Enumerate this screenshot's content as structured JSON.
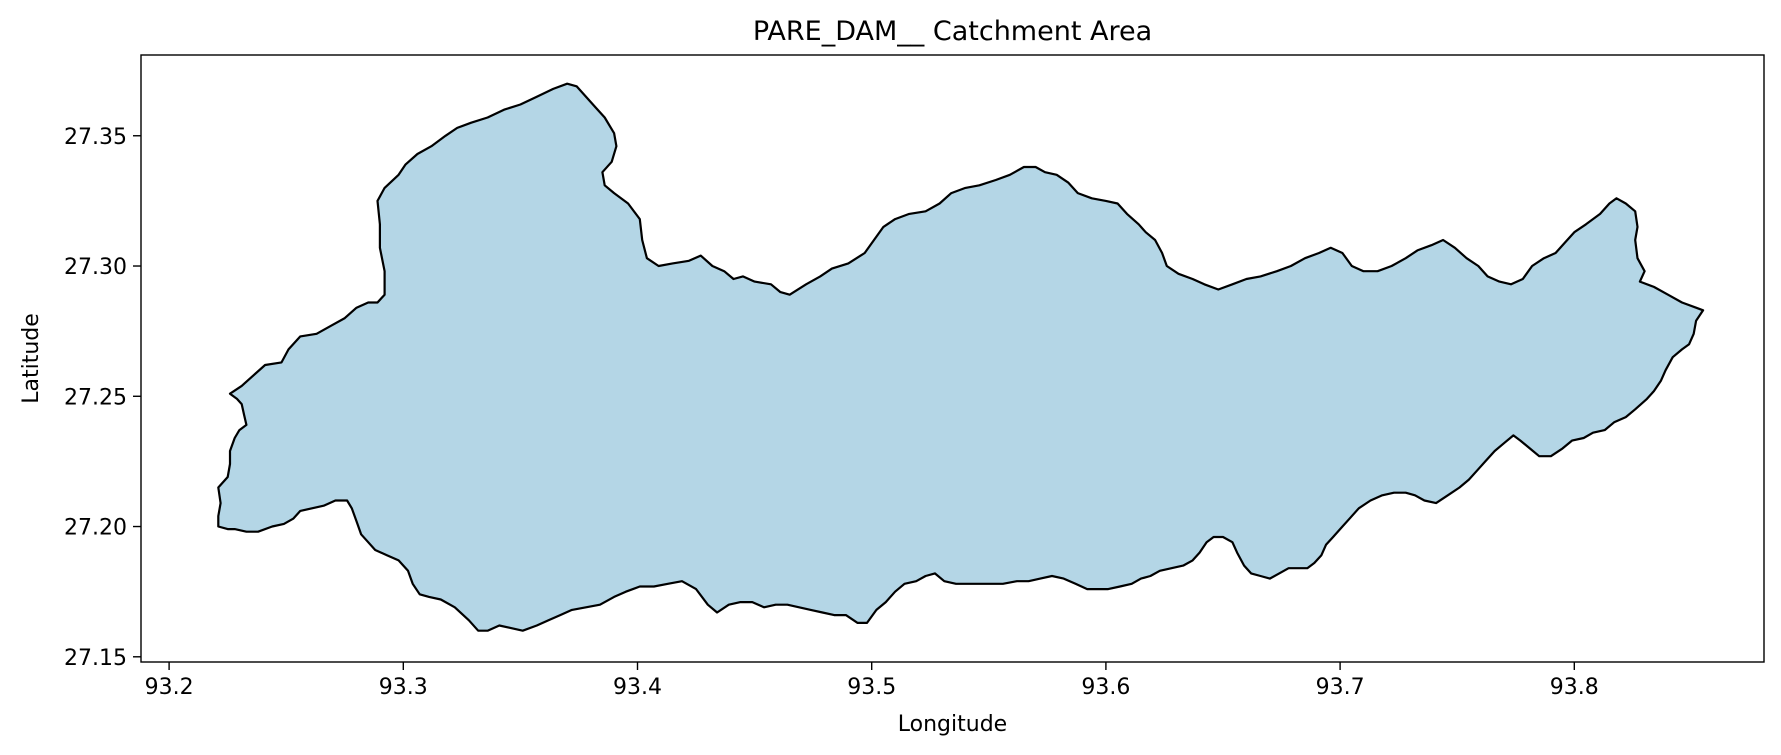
{
  "chart_data": {
    "type": "area",
    "title": "PARE_DAM__ Catchment Area",
    "xlabel": "Longitude",
    "ylabel": "Latitude",
    "xlim": [
      93.188,
      93.881
    ],
    "ylim": [
      27.148,
      27.381
    ],
    "xticks": [
      93.2,
      93.3,
      93.4,
      93.5,
      93.6,
      93.7,
      93.8
    ],
    "xtick_labels": [
      "93.2",
      "93.3",
      "93.4",
      "93.5",
      "93.6",
      "93.7",
      "93.8"
    ],
    "yticks": [
      27.15,
      27.2,
      27.25,
      27.3,
      27.35
    ],
    "ytick_labels": [
      "27.15",
      "27.20",
      "27.25",
      "27.30",
      "27.35"
    ],
    "grid": false,
    "fill_color": "#b4d6e6",
    "edge_color": "#000000",
    "series": [
      {
        "points": [
          [
            93.226,
            27.251
          ],
          [
            93.231,
            27.254
          ],
          [
            93.236,
            27.258
          ],
          [
            93.241,
            27.262
          ],
          [
            93.248,
            27.263
          ],
          [
            93.251,
            27.268
          ],
          [
            93.256,
            27.273
          ],
          [
            93.263,
            27.274
          ],
          [
            93.269,
            27.277
          ],
          [
            93.275,
            27.28
          ],
          [
            93.28,
            27.284
          ],
          [
            93.285,
            27.286
          ],
          [
            93.289,
            27.286
          ],
          [
            93.292,
            27.289
          ],
          [
            93.292,
            27.298
          ],
          [
            93.29,
            27.307
          ],
          [
            93.29,
            27.316
          ],
          [
            93.289,
            27.325
          ],
          [
            93.292,
            27.33
          ],
          [
            93.298,
            27.335
          ],
          [
            93.301,
            27.339
          ],
          [
            93.306,
            27.343
          ],
          [
            93.312,
            27.346
          ],
          [
            93.318,
            27.35
          ],
          [
            93.323,
            27.353
          ],
          [
            93.329,
            27.355
          ],
          [
            93.336,
            27.357
          ],
          [
            93.343,
            27.36
          ],
          [
            93.35,
            27.362
          ],
          [
            93.357,
            27.365
          ],
          [
            93.364,
            27.368
          ],
          [
            93.37,
            27.37
          ],
          [
            93.374,
            27.369
          ],
          [
            93.378,
            27.365
          ],
          [
            93.382,
            27.361
          ],
          [
            93.386,
            27.357
          ],
          [
            93.39,
            27.351
          ],
          [
            93.391,
            27.346
          ],
          [
            93.389,
            27.34
          ],
          [
            93.385,
            27.336
          ],
          [
            93.386,
            27.331
          ],
          [
            93.39,
            27.328
          ],
          [
            93.396,
            27.324
          ],
          [
            93.401,
            27.318
          ],
          [
            93.402,
            27.31
          ],
          [
            93.404,
            27.303
          ],
          [
            93.409,
            27.3
          ],
          [
            93.415,
            27.301
          ],
          [
            93.422,
            27.302
          ],
          [
            93.427,
            27.304
          ],
          [
            93.432,
            27.3
          ],
          [
            93.437,
            27.298
          ],
          [
            93.441,
            27.295
          ],
          [
            93.445,
            27.296
          ],
          [
            93.45,
            27.294
          ],
          [
            93.457,
            27.293
          ],
          [
            93.461,
            27.29
          ],
          [
            93.465,
            27.289
          ],
          [
            93.472,
            27.293
          ],
          [
            93.478,
            27.296
          ],
          [
            93.483,
            27.299
          ],
          [
            93.49,
            27.301
          ],
          [
            93.497,
            27.305
          ],
          [
            93.501,
            27.31
          ],
          [
            93.505,
            27.315
          ],
          [
            93.51,
            27.318
          ],
          [
            93.516,
            27.32
          ],
          [
            93.523,
            27.321
          ],
          [
            93.529,
            27.324
          ],
          [
            93.534,
            27.328
          ],
          [
            93.54,
            27.33
          ],
          [
            93.546,
            27.331
          ],
          [
            93.553,
            27.333
          ],
          [
            93.559,
            27.335
          ],
          [
            93.565,
            27.338
          ],
          [
            93.57,
            27.338
          ],
          [
            93.574,
            27.336
          ],
          [
            93.579,
            27.335
          ],
          [
            93.584,
            27.332
          ],
          [
            93.588,
            27.328
          ],
          [
            93.594,
            27.326
          ],
          [
            93.6,
            27.325
          ],
          [
            93.605,
            27.324
          ],
          [
            93.609,
            27.32
          ],
          [
            93.614,
            27.316
          ],
          [
            93.617,
            27.313
          ],
          [
            93.621,
            27.31
          ],
          [
            93.624,
            27.305
          ],
          [
            93.626,
            27.3
          ],
          [
            93.631,
            27.297
          ],
          [
            93.637,
            27.295
          ],
          [
            93.642,
            27.293
          ],
          [
            93.648,
            27.291
          ],
          [
            93.654,
            27.293
          ],
          [
            93.66,
            27.295
          ],
          [
            93.666,
            27.296
          ],
          [
            93.673,
            27.298
          ],
          [
            93.679,
            27.3
          ],
          [
            93.685,
            27.303
          ],
          [
            93.691,
            27.305
          ],
          [
            93.696,
            27.307
          ],
          [
            93.701,
            27.305
          ],
          [
            93.705,
            27.3
          ],
          [
            93.71,
            27.298
          ],
          [
            93.716,
            27.298
          ],
          [
            93.722,
            27.3
          ],
          [
            93.728,
            27.303
          ],
          [
            93.733,
            27.306
          ],
          [
            93.739,
            27.308
          ],
          [
            93.744,
            27.31
          ],
          [
            93.749,
            27.307
          ],
          [
            93.754,
            27.303
          ],
          [
            93.759,
            27.3
          ],
          [
            93.763,
            27.296
          ],
          [
            93.768,
            27.294
          ],
          [
            93.773,
            27.293
          ],
          [
            93.778,
            27.295
          ],
          [
            93.782,
            27.3
          ],
          [
            93.787,
            27.303
          ],
          [
            93.792,
            27.305
          ],
          [
            93.796,
            27.309
          ],
          [
            93.8,
            27.313
          ],
          [
            93.805,
            27.316
          ],
          [
            93.811,
            27.32
          ],
          [
            93.815,
            27.324
          ],
          [
            93.818,
            27.326
          ],
          [
            93.822,
            27.324
          ],
          [
            93.826,
            27.321
          ],
          [
            93.827,
            27.315
          ],
          [
            93.826,
            27.31
          ],
          [
            93.827,
            27.303
          ],
          [
            93.83,
            27.298
          ],
          [
            93.828,
            27.294
          ],
          [
            93.834,
            27.292
          ],
          [
            93.84,
            27.289
          ],
          [
            93.846,
            27.286
          ],
          [
            93.852,
            27.284
          ],
          [
            93.855,
            27.283
          ],
          [
            93.852,
            27.279
          ],
          [
            93.851,
            27.274
          ],
          [
            93.849,
            27.27
          ],
          [
            93.846,
            27.268
          ],
          [
            93.842,
            27.265
          ],
          [
            93.839,
            27.26
          ],
          [
            93.837,
            27.256
          ],
          [
            93.834,
            27.252
          ],
          [
            93.831,
            27.249
          ],
          [
            93.826,
            27.245
          ],
          [
            93.822,
            27.242
          ],
          [
            93.817,
            27.24
          ],
          [
            93.813,
            27.237
          ],
          [
            93.808,
            27.236
          ],
          [
            93.804,
            27.234
          ],
          [
            93.799,
            27.233
          ],
          [
            93.795,
            27.23
          ],
          [
            93.79,
            27.227
          ],
          [
            93.785,
            27.227
          ],
          [
            93.781,
            27.23
          ],
          [
            93.777,
            27.233
          ],
          [
            93.774,
            27.235
          ],
          [
            93.77,
            27.232
          ],
          [
            93.766,
            27.229
          ],
          [
            93.762,
            27.225
          ],
          [
            93.759,
            27.222
          ],
          [
            93.755,
            27.218
          ],
          [
            93.751,
            27.215
          ],
          [
            93.746,
            27.212
          ],
          [
            93.741,
            27.209
          ],
          [
            93.736,
            27.21
          ],
          [
            93.732,
            27.212
          ],
          [
            93.728,
            27.213
          ],
          [
            93.723,
            27.213
          ],
          [
            93.718,
            27.212
          ],
          [
            93.713,
            27.21
          ],
          [
            93.708,
            27.207
          ],
          [
            93.704,
            27.203
          ],
          [
            93.7,
            27.199
          ],
          [
            93.697,
            27.196
          ],
          [
            93.694,
            27.193
          ],
          [
            93.692,
            27.189
          ],
          [
            93.689,
            27.186
          ],
          [
            93.686,
            27.184
          ],
          [
            93.682,
            27.184
          ],
          [
            93.678,
            27.184
          ],
          [
            93.674,
            27.182
          ],
          [
            93.67,
            27.18
          ],
          [
            93.666,
            27.181
          ],
          [
            93.662,
            27.182
          ],
          [
            93.659,
            27.185
          ],
          [
            93.656,
            27.19
          ],
          [
            93.654,
            27.194
          ],
          [
            93.65,
            27.196
          ],
          [
            93.646,
            27.196
          ],
          [
            93.643,
            27.194
          ],
          [
            93.64,
            27.19
          ],
          [
            93.637,
            27.187
          ],
          [
            93.633,
            27.185
          ],
          [
            93.628,
            27.184
          ],
          [
            93.623,
            27.183
          ],
          [
            93.619,
            27.181
          ],
          [
            93.615,
            27.18
          ],
          [
            93.611,
            27.178
          ],
          [
            93.606,
            27.177
          ],
          [
            93.601,
            27.176
          ],
          [
            93.597,
            27.176
          ],
          [
            93.592,
            27.176
          ],
          [
            93.587,
            27.178
          ],
          [
            93.582,
            27.18
          ],
          [
            93.577,
            27.181
          ],
          [
            93.572,
            27.18
          ],
          [
            93.567,
            27.179
          ],
          [
            93.562,
            27.179
          ],
          [
            93.556,
            27.178
          ],
          [
            93.551,
            27.178
          ],
          [
            93.546,
            27.178
          ],
          [
            93.541,
            27.178
          ],
          [
            93.536,
            27.178
          ],
          [
            93.531,
            27.179
          ],
          [
            93.527,
            27.182
          ],
          [
            93.523,
            27.181
          ],
          [
            93.519,
            27.179
          ],
          [
            93.514,
            27.178
          ],
          [
            93.51,
            27.175
          ],
          [
            93.506,
            27.171
          ],
          [
            93.502,
            27.168
          ],
          [
            93.498,
            27.163
          ],
          [
            93.494,
            27.163
          ],
          [
            93.489,
            27.166
          ],
          [
            93.484,
            27.166
          ],
          [
            93.479,
            27.167
          ],
          [
            93.474,
            27.168
          ],
          [
            93.469,
            27.169
          ],
          [
            93.464,
            27.17
          ],
          [
            93.459,
            27.17
          ],
          [
            93.454,
            27.169
          ],
          [
            93.449,
            27.171
          ],
          [
            93.444,
            27.171
          ],
          [
            93.439,
            27.17
          ],
          [
            93.434,
            27.167
          ],
          [
            93.43,
            27.17
          ],
          [
            93.425,
            27.176
          ],
          [
            93.419,
            27.179
          ],
          [
            93.413,
            27.178
          ],
          [
            93.407,
            27.177
          ],
          [
            93.401,
            27.177
          ],
          [
            93.395,
            27.175
          ],
          [
            93.39,
            27.173
          ],
          [
            93.384,
            27.17
          ],
          [
            93.378,
            27.169
          ],
          [
            93.372,
            27.168
          ],
          [
            93.367,
            27.166
          ],
          [
            93.362,
            27.164
          ],
          [
            93.357,
            27.162
          ],
          [
            93.351,
            27.16
          ],
          [
            93.346,
            27.161
          ],
          [
            93.341,
            27.162
          ],
          [
            93.336,
            27.16
          ],
          [
            93.332,
            27.16
          ],
          [
            93.328,
            27.164
          ],
          [
            93.322,
            27.169
          ],
          [
            93.316,
            27.172
          ],
          [
            93.311,
            27.173
          ],
          [
            93.307,
            27.174
          ],
          [
            93.304,
            27.178
          ],
          [
            93.302,
            27.183
          ],
          [
            93.298,
            27.187
          ],
          [
            93.293,
            27.189
          ],
          [
            93.288,
            27.191
          ],
          [
            93.285,
            27.194
          ],
          [
            93.282,
            27.197
          ],
          [
            93.28,
            27.202
          ],
          [
            93.278,
            27.207
          ],
          [
            93.276,
            27.21
          ],
          [
            93.271,
            27.21
          ],
          [
            93.266,
            27.208
          ],
          [
            93.261,
            27.207
          ],
          [
            93.256,
            27.206
          ],
          [
            93.253,
            27.203
          ],
          [
            93.249,
            27.201
          ],
          [
            93.244,
            27.2
          ],
          [
            93.238,
            27.198
          ],
          [
            93.233,
            27.198
          ],
          [
            93.228,
            27.199
          ],
          [
            93.225,
            27.199
          ],
          [
            93.221,
            27.2
          ],
          [
            93.221,
            27.204
          ],
          [
            93.222,
            27.209
          ],
          [
            93.221,
            27.215
          ],
          [
            93.225,
            27.219
          ],
          [
            93.226,
            27.224
          ],
          [
            93.226,
            27.229
          ],
          [
            93.228,
            27.234
          ],
          [
            93.23,
            27.237
          ],
          [
            93.233,
            27.239
          ],
          [
            93.232,
            27.243
          ],
          [
            93.231,
            27.247
          ],
          [
            93.229,
            27.249
          ]
        ]
      }
    ]
  }
}
